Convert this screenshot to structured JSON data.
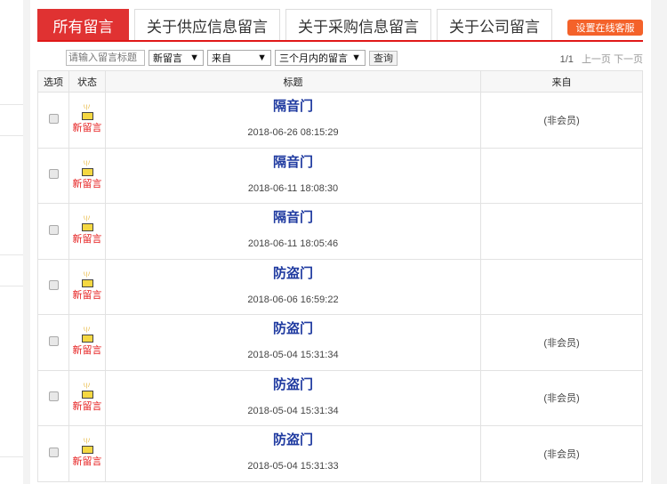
{
  "tabs": [
    {
      "label": "所有留言",
      "active": true
    },
    {
      "label": "关于供应信息留言"
    },
    {
      "label": "关于采购信息留言"
    },
    {
      "label": "关于公司留言"
    }
  ],
  "kefu_button": "设置在线客服",
  "filters": {
    "search_placeholder": "请输入留言标题",
    "status": "新留言",
    "from": "来自",
    "period": "三个月内的留言",
    "query_button": "查询"
  },
  "pager": {
    "page": "1/1",
    "prev": "上一页",
    "next": "下一页"
  },
  "columns": [
    "选项",
    "状态",
    "标题",
    "来自"
  ],
  "status_label": "新留言",
  "rows": [
    {
      "title": "隔音门",
      "date": "2018-06-26 08:15:29",
      "from": "(非会员)"
    },
    {
      "title": "隔音门",
      "date": "2018-06-11 18:08:30",
      "from": ""
    },
    {
      "title": "隔音门",
      "date": "2018-06-11 18:05:46",
      "from": ""
    },
    {
      "title": "防盗门",
      "date": "2018-06-06 16:59:22",
      "from": ""
    },
    {
      "title": "防盗门",
      "date": "2018-05-04 15:31:34",
      "from": "(非会员)"
    },
    {
      "title": "防盗门",
      "date": "2018-05-04 15:31:34",
      "from": "(非会员)"
    },
    {
      "title": "防盗门",
      "date": "2018-05-04 15:31:33",
      "from": "(非会员)"
    }
  ],
  "colors": {
    "accent": "#e03232",
    "button": "#f4622a",
    "title": "#1f3aa0"
  }
}
